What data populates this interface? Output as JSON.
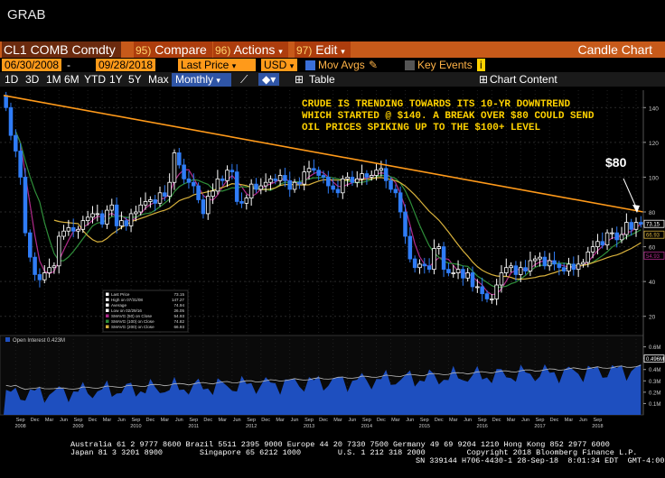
{
  "app": {
    "grab_label": "GRAB",
    "window_title": "Candle Chart"
  },
  "toolbar": {
    "ticker": "CL1 COMB Comdty",
    "compare_num": "95)",
    "compare_label": "Compare",
    "actions_num": "96)",
    "actions_label": "Actions",
    "edit_num": "97)",
    "edit_label": "Edit"
  },
  "settings": {
    "start_date": "06/30/2008",
    "end_date": "09/28/2018",
    "field": "Last Price",
    "currency": "USD",
    "mov_avgs_label": "Mov Avgs",
    "key_events_label": "Key Events"
  },
  "periods": [
    "1D",
    "3D",
    "1M",
    "6M",
    "YTD",
    "1Y",
    "5Y",
    "Max"
  ],
  "frequency": "Monthly",
  "view_buttons": {
    "table": "Table",
    "chart_content": "Chart Content"
  },
  "annotation": {
    "line1": "CRUDE IS TRENDING TOWARDS ITS 10-YR DOWNTREND",
    "line2": "WHICH STARTED @ $140.  A BREAK OVER $80 COULD SEND",
    "line3": "OIL PRICES SPIKING UP TO THE $100+ LEVEL",
    "price_callout": "$80"
  },
  "legend": [
    {
      "label": "Last Price",
      "value": "73.15",
      "color": "#ffffff"
    },
    {
      "label": "High on 07/31/08",
      "value": "147.27",
      "color": "#ffffff"
    },
    {
      "label": "Average",
      "value": "74.94",
      "color": "#ffffff"
    },
    {
      "label": "Low on 02/29/16",
      "value": "26.05",
      "color": "#ffffff"
    },
    {
      "label": "SMAVG (50)  on Close",
      "value": "54.93",
      "color": "#b02a8a"
    },
    {
      "label": "SMAVG (100)  on Close",
      "value": "74.82",
      "color": "#2f8f3a"
    },
    {
      "label": "SMAVG (200)  on Close",
      "value": "66.93",
      "color": "#d8b13c"
    }
  ],
  "price_tags": [
    {
      "value": "73.15",
      "color": "#ffffff"
    },
    {
      "value": "66.93",
      "color": "#d8b13c"
    },
    {
      "value": "54.93",
      "color": "#b02a8a"
    }
  ],
  "oi_legend": "Open Interest 0.423M",
  "oi_tag": "0.496M",
  "footer": {
    "line1": "Australia 61 2 9777 8600 Brazil 5511 2395 9000 Europe 44 20 7330 7500 Germany 49 69 9204 1210 Hong Kong 852 2977 6000",
    "line2": "Japan 81 3 3201 8900        Singapore 65 6212 1000        U.S. 1 212 318 2000         Copyright 2018 Bloomberg Finance L.P.",
    "line3": "SN 339144 H706-4430-1 28-Sep-18  8:01:34 EDT  GMT-4:00"
  },
  "chart_data": {
    "type": "candlestick",
    "title": "",
    "ylim": [
      10,
      150
    ],
    "y_ticks": [
      20,
      40,
      60,
      80,
      100,
      120,
      140
    ],
    "oi_ylim": [
      0,
      0.7
    ],
    "oi_ticks": [
      "0.6M",
      "0.5M",
      "0.4M",
      "0.3M",
      "0.2M",
      "0.1M"
    ],
    "x_month_labels": [
      "Sep",
      "Dec",
      "Mar",
      "Jun",
      "Sep",
      "Dec",
      "Mar",
      "Jun",
      "Sep",
      "Dec",
      "Mar",
      "Jun",
      "Sep",
      "Dec",
      "Mar",
      "Jun",
      "Sep",
      "Dec",
      "Mar",
      "Jun",
      "Sep",
      "Dec",
      "Mar",
      "Jun",
      "Sep",
      "Dec",
      "Mar",
      "Jun",
      "Sep",
      "Dec",
      "Mar",
      "Jun",
      "Sep",
      "Dec",
      "Mar",
      "Jun",
      "Sep",
      "Dec",
      "Mar",
      "Jun",
      "Sep"
    ],
    "x_year_labels": [
      "2008",
      "2009",
      "2010",
      "2011",
      "2012",
      "2013",
      "2014",
      "2015",
      "2016",
      "2017",
      "2018"
    ],
    "monthly_close": [
      140,
      124,
      115,
      100,
      68,
      54,
      44,
      41,
      45,
      48,
      49,
      66,
      69,
      71,
      69,
      70,
      75,
      77,
      79,
      79,
      73,
      81,
      84,
      72,
      75,
      72,
      79,
      80,
      84,
      86,
      87,
      85,
      91,
      89,
      97,
      114,
      107,
      99,
      97,
      95,
      87,
      79,
      89,
      92,
      99,
      98,
      104,
      103,
      86,
      85,
      88,
      96,
      93,
      95,
      97,
      99,
      98,
      101,
      98,
      93,
      97,
      96,
      103,
      105,
      104,
      101,
      100,
      95,
      93,
      91,
      99,
      100,
      97,
      99,
      102,
      100,
      101,
      104,
      105,
      98,
      93,
      91,
      80,
      66,
      53,
      48,
      50,
      49,
      47,
      59,
      60,
      47,
      45,
      45,
      47,
      42,
      45,
      37,
      37,
      33,
      30,
      30,
      38,
      45,
      48,
      49,
      44,
      48,
      46,
      52,
      53,
      54,
      49,
      52,
      50,
      48,
      46,
      50,
      47,
      50,
      51,
      57,
      60,
      63,
      61,
      68,
      68,
      64,
      67,
      74,
      70,
      74,
      73
    ],
    "trendline": {
      "start": 147,
      "end": 80
    },
    "series": [
      {
        "name": "SMAVG (50)  on Close",
        "color": "#b02a8a"
      },
      {
        "name": "SMAVG (100)  on Close",
        "color": "#2f8f3a"
      },
      {
        "name": "SMAVG (200)  on Close",
        "color": "#d8b13c"
      }
    ]
  }
}
